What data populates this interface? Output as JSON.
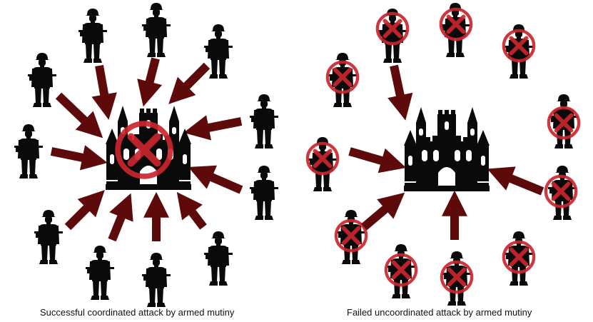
{
  "panels": {
    "left": {
      "caption": "Successful coordinated attack by armed mutiny"
    },
    "right": {
      "caption": "Failed uncoordinated attack by armed mutiny"
    }
  },
  "icons": {
    "soldier": "armed-soldier-icon",
    "castle": "castle-icon",
    "cross": "red-circle-x-icon",
    "arrow": "attack-arrow-icon"
  },
  "colors": {
    "silhouette": "#0a0a0a",
    "arrow": "#5e0a0a",
    "cross": "#c9262c",
    "background": "#ffffff"
  }
}
